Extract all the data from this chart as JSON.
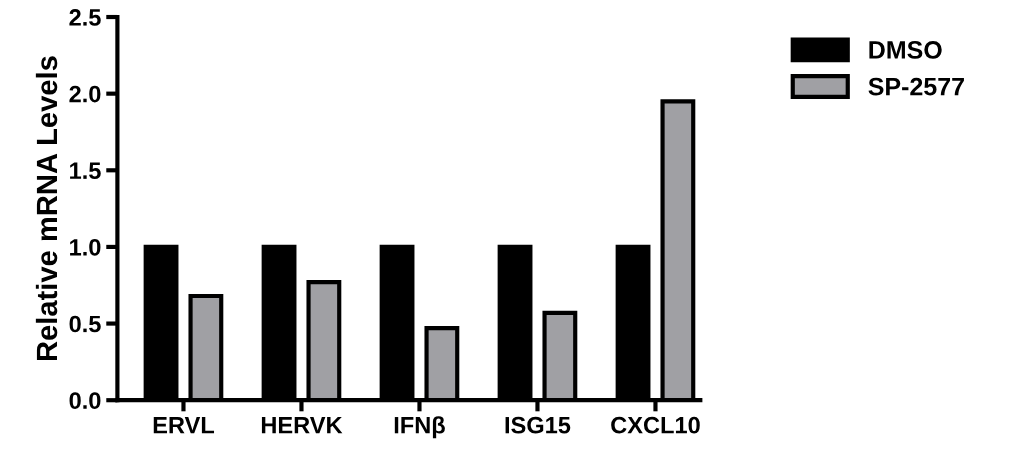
{
  "chart_data": {
    "type": "bar",
    "ylabel": "Relative mRNA Levels",
    "categories": [
      "ERVL",
      "HERVK",
      "IFNβ",
      "ISG15",
      "CXCL10"
    ],
    "series": [
      {
        "name": "DMSO",
        "color": "#000000",
        "values": [
          1.0,
          1.0,
          1.0,
          1.0,
          1.0
        ]
      },
      {
        "name": "SP-2577",
        "color": "#a0a0a4",
        "values": [
          0.68,
          0.77,
          0.47,
          0.57,
          1.95
        ]
      }
    ],
    "ylim": [
      0,
      2.5
    ],
    "yticks": [
      {
        "value": 0,
        "label": "0.0"
      },
      {
        "value": 0.5,
        "label": "0.5"
      },
      {
        "value": 1.0,
        "label": "1.0"
      },
      {
        "value": 1.5,
        "label": "1.5"
      },
      {
        "value": 2.0,
        "label": "2.0"
      },
      {
        "value": 2.5,
        "label": "2.5"
      }
    ],
    "grid": false,
    "legend": "top right"
  }
}
